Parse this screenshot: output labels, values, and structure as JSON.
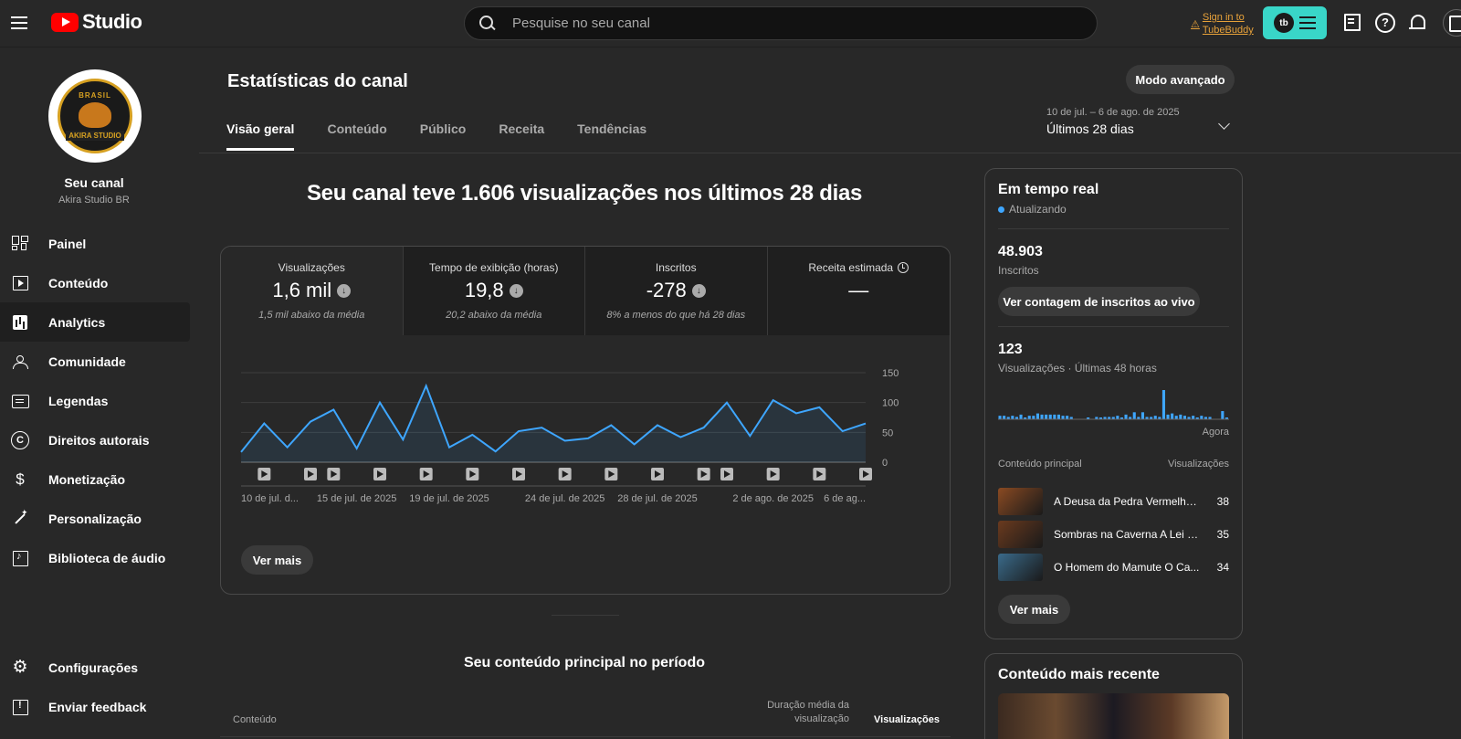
{
  "header": {
    "logo_text": "Studio",
    "search_placeholder": "Pesquise no seu canal",
    "tubebuddy_signin": "Sign in to TubeBuddy",
    "tubebuddy_logo": "tb"
  },
  "sidebar": {
    "channel_title": "Seu canal",
    "channel_name": "Akira Studio BR",
    "avatar_top": "BRASIL",
    "avatar_bottom": "AKIRA STUDIO",
    "items": [
      {
        "label": "Painel",
        "icon": "dashboard-icon"
      },
      {
        "label": "Conteúdo",
        "icon": "content-icon"
      },
      {
        "label": "Analytics",
        "icon": "analytics-icon",
        "active": true
      },
      {
        "label": "Comunidade",
        "icon": "community-icon"
      },
      {
        "label": "Legendas",
        "icon": "subtitles-icon"
      },
      {
        "label": "Direitos autorais",
        "icon": "copyright-icon"
      },
      {
        "label": "Monetização",
        "icon": "monetization-icon"
      },
      {
        "label": "Personalização",
        "icon": "customization-icon"
      },
      {
        "label": "Biblioteca de áudio",
        "icon": "audio-library-icon"
      }
    ],
    "bottom_items": [
      {
        "label": "Configurações",
        "icon": "settings-icon"
      },
      {
        "label": "Enviar feedback",
        "icon": "feedback-icon"
      }
    ]
  },
  "main": {
    "title": "Estatísticas do canal",
    "advanced_button": "Modo avançado",
    "tabs": [
      "Visão geral",
      "Conteúdo",
      "Público",
      "Receita",
      "Tendências"
    ],
    "date_range_sub": "10 de jul. – 6 de ago. de 2025",
    "date_range_main": "Últimos 28 dias",
    "headline": "Seu canal teve 1.606 visualizações nos últimos 28 dias",
    "metrics": [
      {
        "label": "Visualizações",
        "value": "1,6 mil",
        "sub": "1,5 mil abaixo da média"
      },
      {
        "label": "Tempo de exibição (horas)",
        "value": "19,8",
        "sub": "20,2 abaixo da média"
      },
      {
        "label": "Inscritos",
        "value": "-278",
        "sub": "8% a menos do que há 28 dias"
      },
      {
        "label": "Receita estimada",
        "value": "—",
        "sub": ""
      }
    ],
    "see_more": "Ver mais",
    "top_content_title": "Seu conteúdo principal no período",
    "table_headers": {
      "content": "Conteúdo",
      "avg_duration": "Duração média da visualização",
      "views": "Visualizações"
    }
  },
  "chart_data": {
    "type": "area",
    "title": "",
    "ylim": [
      0,
      150
    ],
    "y_ticks": [
      0,
      50,
      100,
      150
    ],
    "x_tick_labels": [
      "10 de jul. d...",
      "15 de jul. de 2025",
      "19 de jul. de 2025",
      "24 de jul. de 2025",
      "28 de jul. de 2025",
      "2 de ago. de 2025",
      "6 de ag..."
    ],
    "series": [
      {
        "values": [
          17,
          65,
          25,
          68,
          88,
          23,
          100,
          38,
          128,
          25,
          46,
          18,
          52,
          58,
          36,
          40,
          62,
          30,
          62,
          42,
          58,
          100,
          44,
          104,
          82,
          92,
          52,
          65
        ]
      }
    ],
    "line_color": "#3ea6ff",
    "video_markers": [
      1,
      3,
      4,
      6,
      8,
      10,
      12,
      14,
      16,
      18,
      20,
      21,
      23,
      25,
      27
    ]
  },
  "realtime": {
    "title": "Em tempo real",
    "status": "Atualizando",
    "subscribers_value": "48.903",
    "subscribers_label": "Inscritos",
    "live_count_button": "Ver contagem de inscritos ao vivo",
    "views_value": "123",
    "views_label": "Visualizações · Últimas 48 horas",
    "now_label": "Agora",
    "mini_bars": [
      3,
      3,
      2,
      3,
      2,
      4,
      1,
      3,
      3,
      5,
      4,
      4,
      4,
      4,
      4,
      3,
      3,
      2,
      0,
      0,
      0,
      1,
      0,
      2,
      1,
      2,
      2,
      2,
      3,
      1,
      4,
      2,
      6,
      2,
      6,
      2,
      2,
      3,
      2,
      25,
      4,
      5,
      3,
      4,
      3,
      2,
      3,
      1,
      3,
      2,
      2,
      0,
      0,
      7,
      1
    ],
    "top_content_label": "Conteúdo principal",
    "top_views_label": "Visualizações",
    "top_items": [
      {
        "title": "A Deusa da Pedra Vermelha ...",
        "views": "38",
        "thumb": "#8a4a22"
      },
      {
        "title": "Sombras na Caverna A Lei d...",
        "views": "35",
        "thumb": "#6a3a1e"
      },
      {
        "title": "O Homem do Mamute O Ca...",
        "views": "34",
        "thumb": "#3a6a8a"
      }
    ],
    "see_more": "Ver mais"
  },
  "recent": {
    "title": "Conteúdo mais recente"
  },
  "colors": {
    "accent_blue": "#3ea6ff",
    "tubebuddy": "#39d6c8",
    "youtube_red": "#ff0000",
    "warning": "#e8a23a"
  }
}
